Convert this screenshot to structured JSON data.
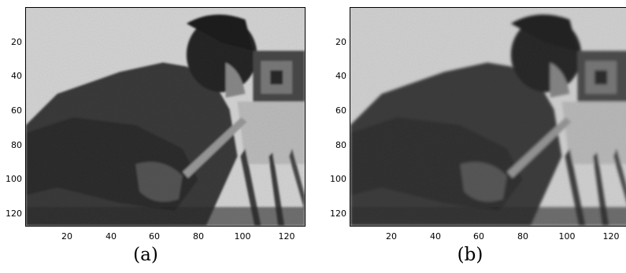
{
  "panels": [
    {
      "caption": "(a)",
      "image": "photo-man-with-film-camera-blurred",
      "y_ticks": [
        "20",
        "40",
        "60",
        "80",
        "100",
        "120"
      ],
      "x_ticks": [
        "20",
        "40",
        "60",
        "80",
        "100",
        "120"
      ]
    },
    {
      "caption": "(b)",
      "image": "photo-man-with-film-camera-denoised",
      "y_ticks": [
        "20",
        "40",
        "60",
        "80",
        "100",
        "120"
      ],
      "x_ticks": [
        "20",
        "40",
        "60",
        "80",
        "100",
        "120"
      ]
    }
  ]
}
